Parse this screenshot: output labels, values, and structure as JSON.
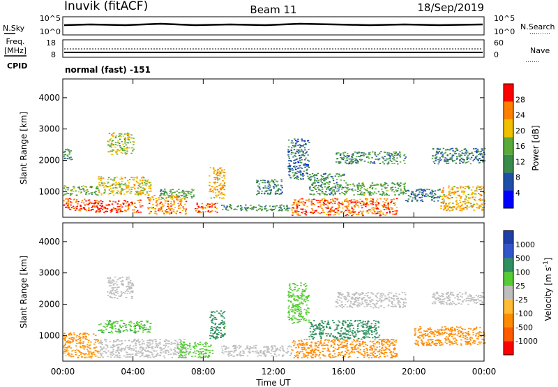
{
  "header": {
    "station": "Inuvik (fitACF)",
    "beam": "Beam 11",
    "date": "18/Sep/2019"
  },
  "aux": {
    "nsky_label": "N.Sky",
    "nsky_ticks": [
      "10^5",
      "10^0"
    ],
    "nsearch_label": "N.Search",
    "nsearch_ticks": [
      "10^5",
      "10^0"
    ],
    "freq_label_1": "Freq.",
    "freq_label_2": "[MHz]",
    "freq_ticks": [
      "18",
      "8"
    ],
    "nave_label": "Nave",
    "nave_ticks": [
      "60",
      "0"
    ],
    "cpid_label": "CPID",
    "cpid_value": "normal (fast) -151"
  },
  "colors": {
    "power": [
      "#0000ff",
      "#1f4ea8",
      "#3a8a4a",
      "#5aaa3a",
      "#f0c000",
      "#ff8000",
      "#ff0000"
    ],
    "velocity": [
      "#ff0000",
      "#ff5a00",
      "#ff8c00",
      "#ffbb33",
      "#bebebe",
      "#55cc33",
      "#2f8f5f",
      "#3355cc",
      "#1f3fa8"
    ]
  },
  "chart_data": [
    {
      "type": "heatmap",
      "name": "power",
      "title": "",
      "xlabel": "Time UT",
      "ylabel": "Slant Range [km]",
      "xlim": [
        "00:00",
        "00:00"
      ],
      "xticks": [
        "00:00",
        "04:00",
        "08:00",
        "12:00",
        "16:00",
        "20:00",
        "00:00"
      ],
      "ylim": [
        180,
        4600
      ],
      "yticks": [
        1000,
        2000,
        3000,
        4000
      ],
      "colorbar": {
        "label": "Power [dB]",
        "range": [
          0,
          32
        ],
        "ticks": [
          4,
          8,
          12,
          16,
          20,
          24,
          28
        ]
      },
      "regions": [
        {
          "t": [
            0.0,
            1.5
          ],
          "r": [
            400,
            800
          ],
          "value": 27
        },
        {
          "t": [
            1.5,
            4.5
          ],
          "r": [
            350,
            750
          ],
          "value": 28
        },
        {
          "t": [
            0.0,
            2.0
          ],
          "r": [
            900,
            1200
          ],
          "value": 16
        },
        {
          "t": [
            2.0,
            5.0
          ],
          "r": [
            900,
            1500
          ],
          "value": 20
        },
        {
          "t": [
            2.5,
            4.0
          ],
          "r": [
            2200,
            2900
          ],
          "value": 18
        },
        {
          "t": [
            0.0,
            0.5
          ],
          "r": [
            2000,
            2400
          ],
          "value": 12
        },
        {
          "t": [
            4.8,
            7.0
          ],
          "r": [
            300,
            900
          ],
          "value": 24
        },
        {
          "t": [
            5.5,
            7.5
          ],
          "r": [
            800,
            1100
          ],
          "value": 14
        },
        {
          "t": [
            7.5,
            8.8
          ],
          "r": [
            350,
            650
          ],
          "value": 27
        },
        {
          "t": [
            8.3,
            9.2
          ],
          "r": [
            800,
            1800
          ],
          "value": 22
        },
        {
          "t": [
            9.0,
            13.0
          ],
          "r": [
            400,
            600
          ],
          "value": 12
        },
        {
          "t": [
            11.0,
            12.5
          ],
          "r": [
            900,
            1400
          ],
          "value": 10
        },
        {
          "t": [
            13.0,
            19.0
          ],
          "r": [
            250,
            800
          ],
          "value": 26
        },
        {
          "t": [
            14.0,
            16.0
          ],
          "r": [
            900,
            1600
          ],
          "value": 12
        },
        {
          "t": [
            16.0,
            19.5
          ],
          "r": [
            900,
            1300
          ],
          "value": 14
        },
        {
          "t": [
            15.5,
            19.5
          ],
          "r": [
            1900,
            2300
          ],
          "value": 12
        },
        {
          "t": [
            19.5,
            21.5
          ],
          "r": [
            700,
            1100
          ],
          "value": 9
        },
        {
          "t": [
            21.5,
            24.0
          ],
          "r": [
            400,
            1200
          ],
          "value": 22
        },
        {
          "t": [
            21.0,
            24.0
          ],
          "r": [
            1900,
            2400
          ],
          "value": 10
        },
        {
          "t": [
            12.8,
            14.0
          ],
          "r": [
            1400,
            2700
          ],
          "value": 9
        }
      ]
    },
    {
      "type": "heatmap",
      "name": "velocity",
      "title": "",
      "xlabel": "Time UT",
      "ylabel": "Slant Range [km]",
      "xlim": [
        "00:00",
        "00:00"
      ],
      "xticks": [
        "00:00",
        "04:00",
        "08:00",
        "12:00",
        "16:00",
        "20:00",
        "00:00"
      ],
      "ylim": [
        180,
        4600
      ],
      "yticks": [
        1000,
        2000,
        3000,
        4000
      ],
      "colorbar": {
        "label": "Velocity [m s",
        "label_sup": "-1",
        "label_end": "]",
        "ticks": [
          "-1000",
          "-500",
          "-100",
          "-25",
          "25",
          "100",
          "500",
          "1000"
        ]
      },
      "regions": [
        {
          "t": [
            0.0,
            2.0
          ],
          "r": [
            300,
            800
          ],
          "value": -120
        },
        {
          "t": [
            0.0,
            2.0
          ],
          "r": [
            800,
            1100
          ],
          "value": -200
        },
        {
          "t": [
            2.0,
            4.5
          ],
          "r": [
            300,
            900
          ],
          "value": 0
        },
        {
          "t": [
            2.0,
            5.0
          ],
          "r": [
            1100,
            1500
          ],
          "value": 80
        },
        {
          "t": [
            2.5,
            4.0
          ],
          "r": [
            2200,
            2900
          ],
          "value": 0
        },
        {
          "t": [
            4.5,
            7.0
          ],
          "r": [
            300,
            900
          ],
          "value": 0
        },
        {
          "t": [
            6.5,
            8.5
          ],
          "r": [
            300,
            800
          ],
          "value": 60
        },
        {
          "t": [
            8.3,
            9.2
          ],
          "r": [
            900,
            1800
          ],
          "value": 150
        },
        {
          "t": [
            9.0,
            13.0
          ],
          "r": [
            350,
            700
          ],
          "value": 0
        },
        {
          "t": [
            13.0,
            19.0
          ],
          "r": [
            300,
            900
          ],
          "value": -300
        },
        {
          "t": [
            14.0,
            18.0
          ],
          "r": [
            900,
            1500
          ],
          "value": 200
        },
        {
          "t": [
            15.5,
            19.5
          ],
          "r": [
            1900,
            2400
          ],
          "value": 0
        },
        {
          "t": [
            20.0,
            24.0
          ],
          "r": [
            700,
            1300
          ],
          "value": -200
        },
        {
          "t": [
            21.0,
            24.0
          ],
          "r": [
            2000,
            2400
          ],
          "value": 0
        },
        {
          "t": [
            12.8,
            14.0
          ],
          "r": [
            1400,
            2700
          ],
          "value": 70
        }
      ]
    }
  ]
}
